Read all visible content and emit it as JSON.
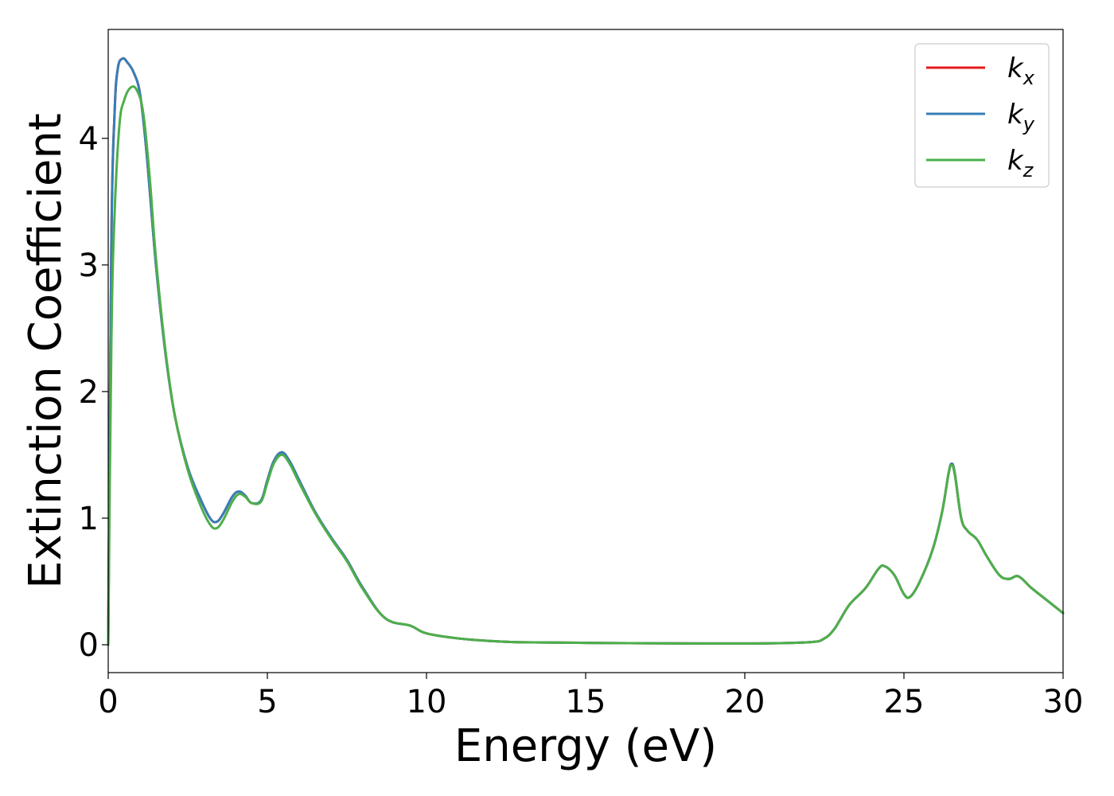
{
  "chart_data": {
    "type": "line",
    "title": "",
    "xlabel": "Energy (eV)",
    "ylabel": "Extinction Coefficient",
    "xlim": [
      0,
      30
    ],
    "ylim": [
      -0.22,
      4.86
    ],
    "xticks": [
      0,
      5,
      10,
      15,
      20,
      25,
      30
    ],
    "xtick_labels": [
      "0",
      "5",
      "10",
      "15",
      "20",
      "25",
      "30"
    ],
    "yticks": [
      0,
      1,
      2,
      3,
      4
    ],
    "ytick_labels": [
      "0",
      "1",
      "2",
      "3",
      "4"
    ],
    "grid": false,
    "legend_position": "top-right",
    "series": [
      {
        "name": "k_x",
        "label_base": "k",
        "label_sub": "x",
        "color": "#e41a1c",
        "x": [
          0,
          0.1,
          0.2,
          0.3,
          0.45,
          0.6,
          0.8,
          1.0,
          1.2,
          1.5,
          1.8,
          2.1,
          2.5,
          2.9,
          3.2,
          3.4,
          3.6,
          3.9,
          4.1,
          4.3,
          4.5,
          4.8,
          5.0,
          5.2,
          5.45,
          5.7,
          6.0,
          6.5,
          7.0,
          7.5,
          8.0,
          8.7,
          9.5,
          10.0,
          11.0,
          12.0,
          13.0,
          15.0,
          17.0,
          20.0,
          22.0,
          22.5,
          22.8,
          23.0,
          23.3,
          23.8,
          24.2,
          24.4,
          24.7,
          25.0,
          25.2,
          25.5,
          25.9,
          26.2,
          26.4,
          26.5,
          26.6,
          26.8,
          27.0,
          27.3,
          27.6,
          28.0,
          28.3,
          28.6,
          29.0,
          29.5,
          30.0
        ],
        "y": [
          0,
          3.2,
          4.2,
          4.55,
          4.63,
          4.6,
          4.52,
          4.35,
          3.9,
          3.0,
          2.3,
          1.8,
          1.4,
          1.15,
          1.0,
          0.97,
          1.03,
          1.17,
          1.21,
          1.18,
          1.12,
          1.14,
          1.3,
          1.45,
          1.52,
          1.45,
          1.3,
          1.05,
          0.85,
          0.67,
          0.45,
          0.21,
          0.15,
          0.09,
          0.05,
          0.03,
          0.02,
          0.015,
          0.012,
          0.01,
          0.02,
          0.05,
          0.12,
          0.2,
          0.32,
          0.45,
          0.6,
          0.62,
          0.55,
          0.4,
          0.38,
          0.5,
          0.75,
          1.05,
          1.35,
          1.43,
          1.35,
          1.0,
          0.9,
          0.83,
          0.7,
          0.55,
          0.52,
          0.54,
          0.45,
          0.35,
          0.25
        ]
      },
      {
        "name": "k_y",
        "label_base": "k",
        "label_sub": "y",
        "color": "#377eb8",
        "x": [
          0,
          0.1,
          0.2,
          0.3,
          0.45,
          0.6,
          0.8,
          1.0,
          1.2,
          1.5,
          1.8,
          2.1,
          2.5,
          2.9,
          3.2,
          3.4,
          3.6,
          3.9,
          4.1,
          4.3,
          4.5,
          4.8,
          5.0,
          5.2,
          5.45,
          5.7,
          6.0,
          6.5,
          7.0,
          7.5,
          8.0,
          8.7,
          9.5,
          10.0,
          11.0,
          12.0,
          13.0,
          15.0,
          17.0,
          20.0,
          22.0,
          22.5,
          22.8,
          23.0,
          23.3,
          23.8,
          24.2,
          24.4,
          24.7,
          25.0,
          25.2,
          25.5,
          25.9,
          26.2,
          26.4,
          26.5,
          26.6,
          26.8,
          27.0,
          27.3,
          27.6,
          28.0,
          28.3,
          28.6,
          29.0,
          29.5,
          30.0
        ],
        "y": [
          0,
          3.2,
          4.2,
          4.55,
          4.63,
          4.6,
          4.52,
          4.35,
          3.9,
          3.0,
          2.3,
          1.8,
          1.4,
          1.15,
          1.0,
          0.97,
          1.03,
          1.17,
          1.21,
          1.18,
          1.12,
          1.14,
          1.3,
          1.45,
          1.52,
          1.45,
          1.3,
          1.05,
          0.85,
          0.67,
          0.45,
          0.21,
          0.15,
          0.09,
          0.05,
          0.03,
          0.02,
          0.015,
          0.012,
          0.01,
          0.02,
          0.05,
          0.12,
          0.2,
          0.32,
          0.45,
          0.6,
          0.62,
          0.55,
          0.4,
          0.38,
          0.5,
          0.75,
          1.05,
          1.35,
          1.43,
          1.35,
          1.0,
          0.9,
          0.83,
          0.7,
          0.55,
          0.52,
          0.54,
          0.45,
          0.35,
          0.25
        ]
      },
      {
        "name": "k_z",
        "label_base": "k",
        "label_sub": "z",
        "color": "#4daf4a",
        "x": [
          0,
          0.1,
          0.2,
          0.35,
          0.5,
          0.7,
          0.9,
          1.1,
          1.3,
          1.5,
          1.8,
          2.1,
          2.5,
          2.9,
          3.2,
          3.4,
          3.6,
          3.9,
          4.1,
          4.3,
          4.5,
          4.8,
          5.0,
          5.2,
          5.45,
          5.7,
          6.0,
          6.5,
          7.0,
          7.5,
          8.0,
          8.7,
          9.5,
          10.0,
          11.0,
          12.0,
          13.0,
          15.0,
          17.0,
          20.0,
          22.0,
          22.5,
          22.8,
          23.0,
          23.3,
          23.8,
          24.2,
          24.4,
          24.7,
          25.0,
          25.2,
          25.5,
          25.9,
          26.2,
          26.4,
          26.5,
          26.6,
          26.8,
          27.0,
          27.3,
          27.6,
          28.0,
          28.3,
          28.6,
          29.0,
          29.5,
          30.0
        ],
        "y": [
          0,
          2.4,
          3.4,
          4.1,
          4.3,
          4.4,
          4.38,
          4.2,
          3.7,
          3.05,
          2.32,
          1.8,
          1.38,
          1.1,
          0.95,
          0.92,
          0.98,
          1.13,
          1.19,
          1.17,
          1.12,
          1.13,
          1.28,
          1.43,
          1.5,
          1.43,
          1.28,
          1.04,
          0.84,
          0.66,
          0.44,
          0.21,
          0.15,
          0.09,
          0.05,
          0.03,
          0.02,
          0.015,
          0.012,
          0.01,
          0.02,
          0.05,
          0.12,
          0.2,
          0.32,
          0.45,
          0.6,
          0.62,
          0.55,
          0.4,
          0.38,
          0.5,
          0.75,
          1.05,
          1.35,
          1.42,
          1.34,
          1.0,
          0.9,
          0.83,
          0.7,
          0.55,
          0.52,
          0.54,
          0.45,
          0.35,
          0.25
        ]
      }
    ]
  }
}
